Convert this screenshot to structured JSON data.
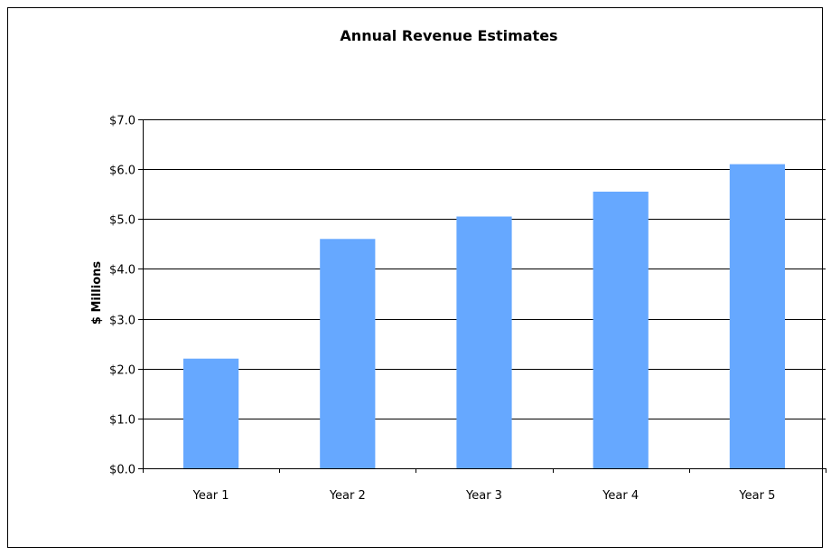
{
  "chart_data": {
    "type": "bar",
    "title": "Annual Revenue Estimates",
    "xlabel": "",
    "ylabel": "$ Millions",
    "categories": [
      "Year 1",
      "Year 2",
      "Year 3",
      "Year 4",
      "Year 5"
    ],
    "values": [
      2.2,
      4.6,
      5.05,
      5.55,
      6.1
    ],
    "ylim": [
      0,
      7
    ],
    "yticks": [
      0,
      1,
      2,
      3,
      4,
      5,
      6,
      7
    ],
    "ytick_labels": [
      "$0.0",
      "$1.0",
      "$2.0",
      "$3.0",
      "$4.0",
      "$5.0",
      "$6.0",
      "$7.0"
    ],
    "grid": true,
    "legend": "none",
    "bar_color": "#66A8FF",
    "grid_color": "#000000"
  }
}
